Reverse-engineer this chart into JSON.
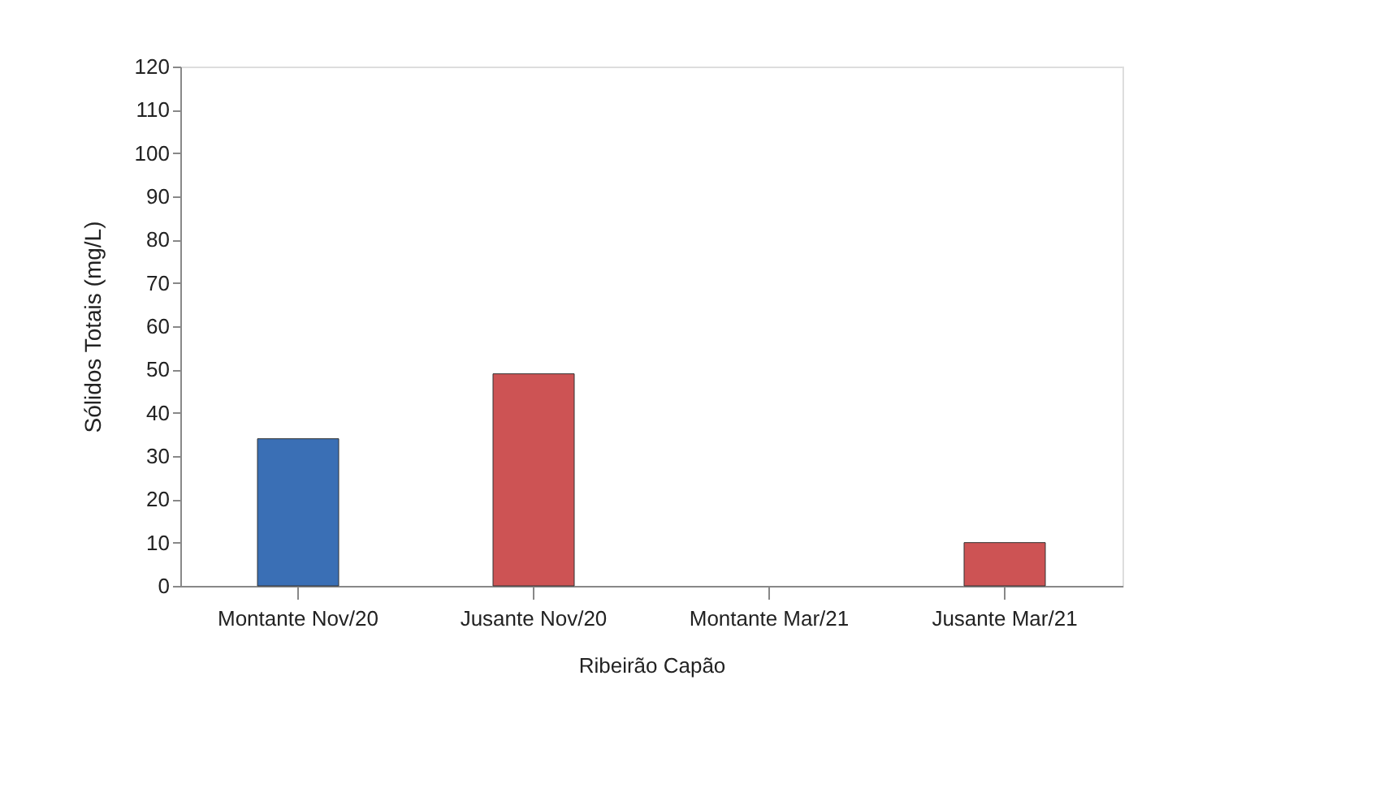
{
  "chart_data": {
    "type": "bar",
    "categories": [
      "Montante Nov/20",
      "Jusante Nov/20",
      "Montante Mar/21",
      "Jusante Mar/21"
    ],
    "values": [
      34,
      49,
      null,
      10
    ],
    "colors": [
      "#3a6fb5",
      "#cd5354",
      "#cd5354",
      "#cd5354"
    ],
    "xlabel": "Ribeirão Capão",
    "ylabel": "Sólidos Totais (mg/L)",
    "ylim": [
      0,
      120
    ],
    "yticks": [
      0,
      10,
      20,
      30,
      40,
      50,
      60,
      70,
      80,
      90,
      100,
      110,
      120
    ],
    "grid": false
  }
}
